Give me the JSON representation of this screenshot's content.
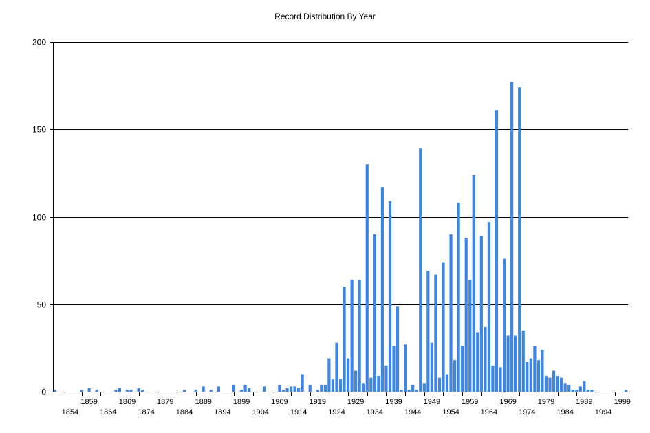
{
  "chart_data": {
    "type": "bar",
    "title": "Record Distribution By Year",
    "xlabel": "",
    "ylabel": "",
    "ylim": [
      0,
      200
    ],
    "yticks": [
      0,
      50,
      100,
      150,
      200
    ],
    "xticks_upper": [
      "1859",
      "1869",
      "1879",
      "1889",
      "1899",
      "1909",
      "1919",
      "1929",
      "1939",
      "1949",
      "1959",
      "1969",
      "1979",
      "1989",
      "1999"
    ],
    "xticks_lower": [
      "1854",
      "1864",
      "1874",
      "1884",
      "1894",
      "1904",
      "1914",
      "1924",
      "1934",
      "1944",
      "1954",
      "1964",
      "1974",
      "1984",
      "1994"
    ],
    "grid": "horizontal",
    "bar_color": "#3d85e6",
    "x": [
      1850,
      1857,
      1859,
      1861,
      1866,
      1867,
      1869,
      1870,
      1872,
      1873,
      1884,
      1887,
      1889,
      1891,
      1893,
      1897,
      1899,
      1900,
      1901,
      1905,
      1909,
      1910,
      1911,
      1912,
      1913,
      1914,
      1915,
      1917,
      1919,
      1920,
      1921,
      1922,
      1923,
      1924,
      1925,
      1926,
      1927,
      1928,
      1929,
      1930,
      1931,
      1932,
      1933,
      1934,
      1935,
      1936,
      1937,
      1938,
      1939,
      1940,
      1941,
      1942,
      1943,
      1944,
      1945,
      1946,
      1947,
      1948,
      1949,
      1950,
      1951,
      1952,
      1953,
      1954,
      1955,
      1956,
      1957,
      1958,
      1959,
      1960,
      1961,
      1962,
      1963,
      1964,
      1965,
      1966,
      1967,
      1968,
      1969,
      1970,
      1971,
      1972,
      1973,
      1974,
      1975,
      1976,
      1977,
      1978,
      1979,
      1980,
      1981,
      1982,
      1983,
      1984,
      1985,
      1986,
      1987,
      1988,
      1989,
      1990,
      1991,
      2000
    ],
    "values": [
      1,
      1,
      2,
      1,
      1,
      2,
      1,
      1,
      2,
      1,
      1,
      1,
      3,
      1,
      3,
      4,
      1,
      4,
      2,
      3,
      4,
      1,
      2,
      3,
      3,
      2,
      10,
      4,
      1,
      4,
      4,
      19,
      7,
      28,
      7,
      60,
      19,
      64,
      12,
      64,
      5,
      130,
      8,
      90,
      9,
      117,
      15,
      109,
      26,
      49,
      1,
      27,
      1,
      4,
      1,
      139,
      5,
      69,
      28,
      67,
      8,
      74,
      10,
      90,
      18,
      108,
      26,
      88,
      64,
      124,
      34,
      89,
      37,
      97,
      15,
      161,
      14,
      76,
      32,
      177,
      32,
      174,
      35,
      17,
      19,
      26,
      18,
      24,
      9,
      8,
      12,
      9,
      8,
      5,
      4,
      1,
      1,
      3,
      6,
      1,
      1,
      1
    ]
  }
}
